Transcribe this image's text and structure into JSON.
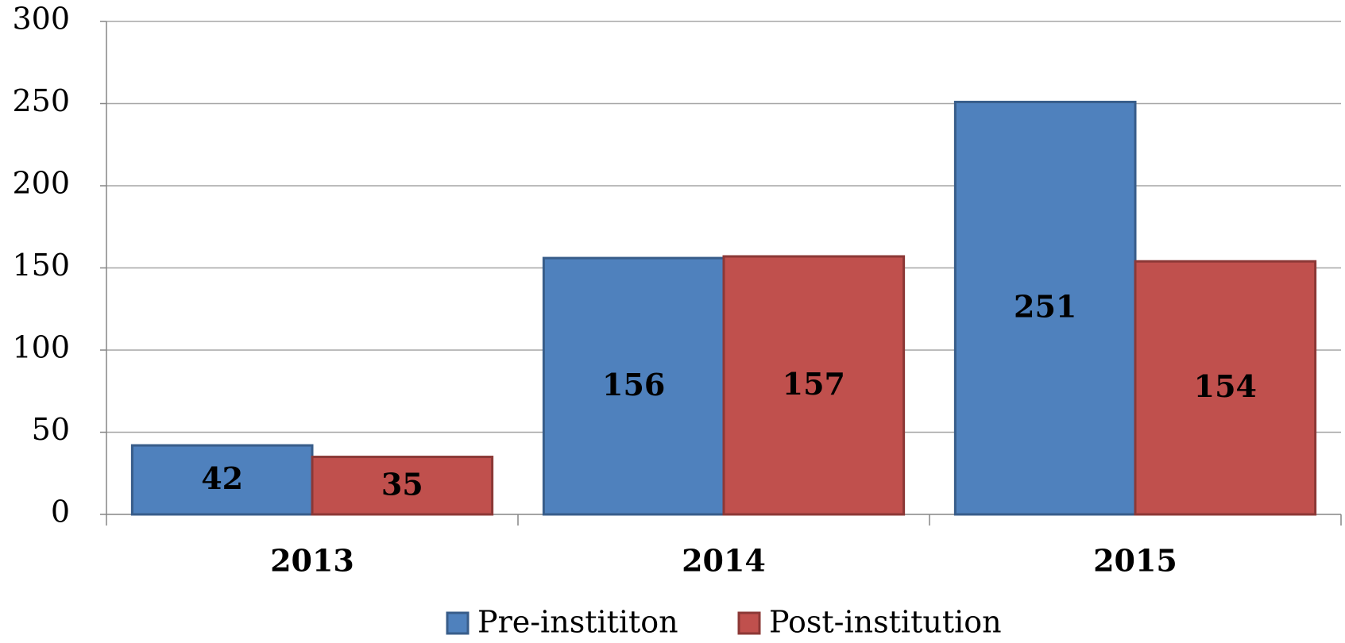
{
  "chart_data": {
    "type": "bar",
    "categories": [
      "2013",
      "2014",
      "2015"
    ],
    "series": [
      {
        "name": "Pre-instititon",
        "color": "#4f81bd",
        "values": [
          42,
          156,
          251
        ]
      },
      {
        "name": "Post-institution",
        "color": "#c0504d",
        "values": [
          35,
          157,
          154
        ]
      }
    ],
    "ylim": [
      0,
      300
    ],
    "yticks": [
      0,
      50,
      100,
      150,
      200,
      250,
      300
    ],
    "grid": true,
    "legend": "bottom"
  }
}
